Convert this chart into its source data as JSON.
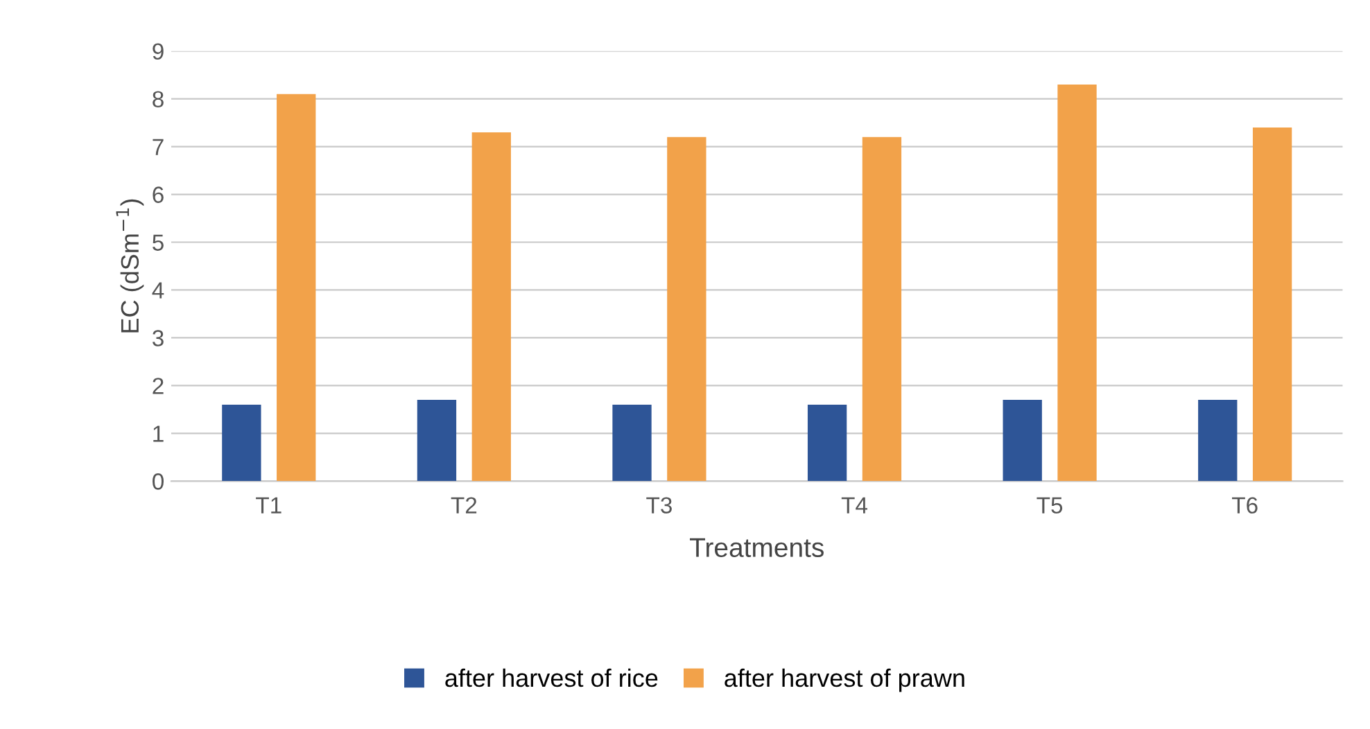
{
  "chart_data": {
    "type": "bar",
    "xlabel": "Treatments",
    "ylabel": "EC (dSm$^{−1}$)",
    "categories": [
      "T1",
      "T2",
      "T3",
      "T4",
      "T5",
      "T6"
    ],
    "series": [
      {
        "name": "after harvest of rice",
        "color": "#2e5597",
        "values": [
          1.6,
          1.7,
          1.6,
          1.6,
          1.7,
          1.7
        ]
      },
      {
        "name": "after harvest of prawn",
        "color": "#f2a24a",
        "values": [
          8.1,
          7.3,
          7.2,
          7.2,
          8.3,
          7.4
        ]
      }
    ],
    "ylim": [
      0,
      9
    ],
    "yticks": [
      0,
      1,
      2,
      3,
      4,
      5,
      6,
      7,
      8,
      9
    ],
    "grid": "y",
    "legend": "bottom"
  }
}
